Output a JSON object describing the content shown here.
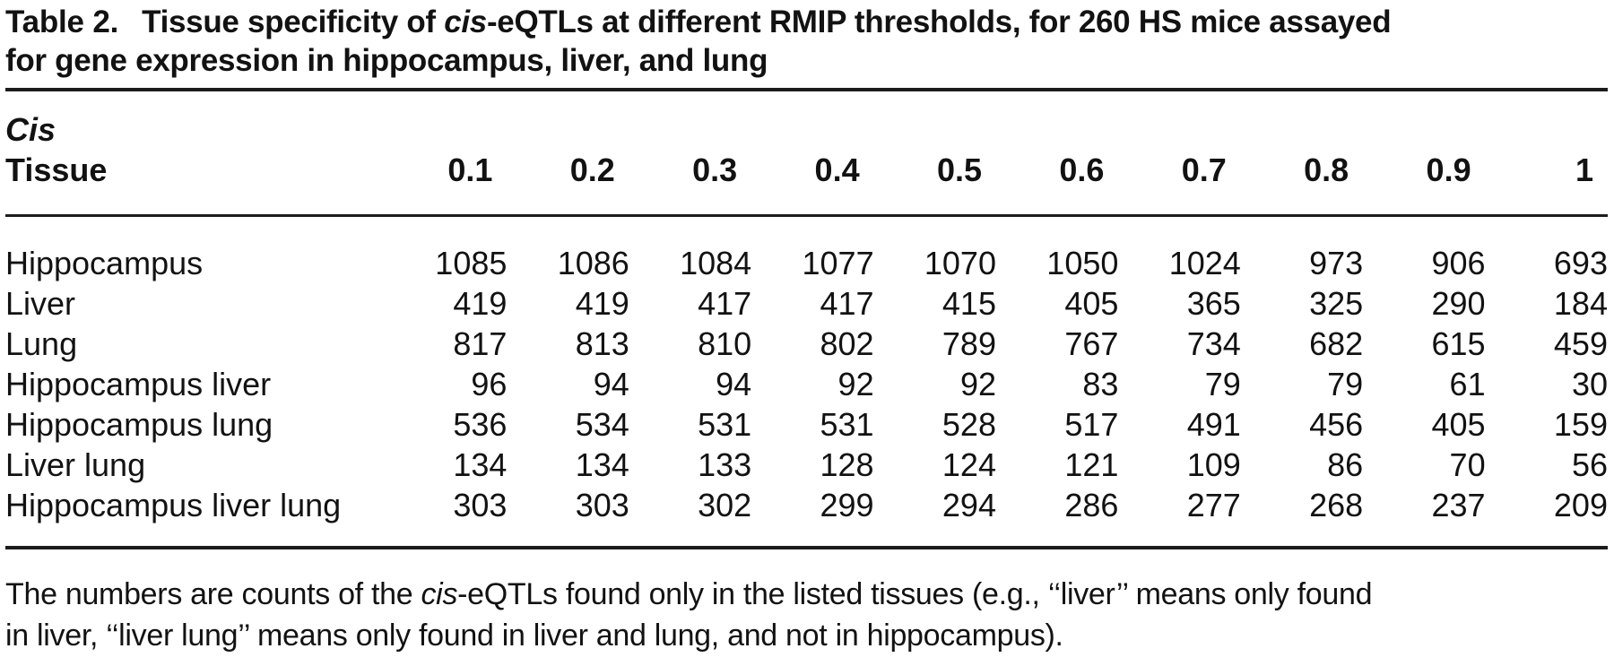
{
  "title": {
    "label": "Table 2.",
    "line1_before_italic": "Tissue specificity of ",
    "italic_word": "cis",
    "line1_after_italic": "-eQTLs at different RMIP thresholds, for 260 HS mice assayed",
    "line2": "for gene expression in hippocampus, liver, and lung"
  },
  "table": {
    "header_group": "Cis",
    "header_label": "Tissue",
    "thresholds": [
      "0.1",
      "0.2",
      "0.3",
      "0.4",
      "0.5",
      "0.6",
      "0.7",
      "0.8",
      "0.9",
      "1"
    ],
    "rows": [
      {
        "tissue": "Hippocampus",
        "values": [
          1085,
          1086,
          1084,
          1077,
          1070,
          1050,
          1024,
          973,
          906,
          693
        ]
      },
      {
        "tissue": "Liver",
        "values": [
          419,
          419,
          417,
          417,
          415,
          405,
          365,
          325,
          290,
          184
        ]
      },
      {
        "tissue": "Lung",
        "values": [
          817,
          813,
          810,
          802,
          789,
          767,
          734,
          682,
          615,
          459
        ]
      },
      {
        "tissue": "Hippocampus liver",
        "values": [
          96,
          94,
          94,
          92,
          92,
          83,
          79,
          79,
          61,
          30
        ]
      },
      {
        "tissue": "Hippocampus lung",
        "values": [
          536,
          534,
          531,
          531,
          528,
          517,
          491,
          456,
          405,
          159
        ]
      },
      {
        "tissue": "Liver lung",
        "values": [
          134,
          134,
          133,
          128,
          124,
          121,
          109,
          86,
          70,
          56
        ]
      },
      {
        "tissue": "Hippocampus liver lung",
        "values": [
          303,
          303,
          302,
          299,
          294,
          286,
          277,
          268,
          237,
          209
        ]
      }
    ]
  },
  "footnote": {
    "line1_before_italic": "The numbers are counts of the ",
    "italic_word": "cis",
    "line1_after_italic": "-eQTLs found only in the listed tissues (e.g., ‘‘liver’’ means only found",
    "line2": "in liver, ‘‘liver lung’’ means only found in liver and lung, and not in hippocampus)."
  },
  "colors": {
    "background": "#ffffff",
    "text": "#121212",
    "rule": "#1c1c1c"
  }
}
